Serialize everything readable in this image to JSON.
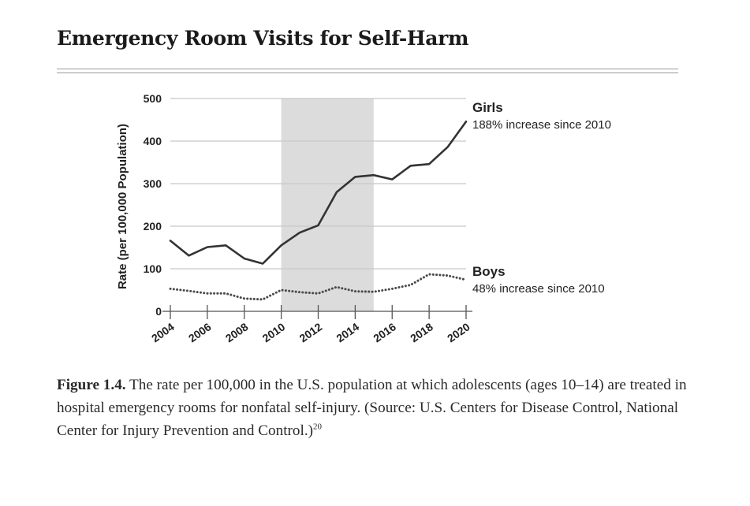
{
  "header": {
    "title": "Emergency Room Visits for Self-Harm"
  },
  "chart_data": {
    "type": "line",
    "title": "Emergency Room Visits for Self-Harm",
    "xlabel": "",
    "ylabel": "Rate (per 100,000 Population)",
    "xlim": [
      2004,
      2020
    ],
    "ylim": [
      0,
      500
    ],
    "x_ticks": [
      "2004",
      "2006",
      "2008",
      "2010",
      "2012",
      "2014",
      "2016",
      "2018",
      "2020"
    ],
    "y_ticks": [
      "0",
      "100",
      "200",
      "300",
      "400",
      "500"
    ],
    "grid": true,
    "shaded_region": {
      "x_start": 2010,
      "x_end": 2015
    },
    "x": [
      2004,
      2005,
      2006,
      2007,
      2008,
      2009,
      2010,
      2011,
      2012,
      2013,
      2014,
      2015,
      2016,
      2017,
      2018,
      2019,
      2020
    ],
    "series": [
      {
        "name": "Girls",
        "annotation": "188% increase since 2010",
        "style": "solid",
        "color": "#333333",
        "values": [
          166,
          131,
          151,
          155,
          124,
          112,
          155,
          185,
          202,
          280,
          316,
          320,
          310,
          342,
          346,
          386,
          446
        ]
      },
      {
        "name": "Boys",
        "annotation": "48% increase since 2010",
        "style": "dotted",
        "color": "#4a4a4a",
        "values": [
          53,
          48,
          42,
          42,
          30,
          28,
          50,
          45,
          42,
          57,
          47,
          46,
          53,
          62,
          87,
          84,
          74
        ]
      }
    ]
  },
  "caption": {
    "label": "Figure 1.4.",
    "text": " The rate per 100,000 in the U.S. population at which adolescents (ages 10–14) are treated in hospital emergency rooms for nonfatal self-injury. (Source: U.S. Centers for Disease Control, National Center for Injury Prevention and Control.)",
    "footnote": "20"
  },
  "colors": {
    "shade": "#dcdcdc",
    "grid": "#c8c8c8",
    "axis": "#555555",
    "rule": "#9a9a9a"
  }
}
